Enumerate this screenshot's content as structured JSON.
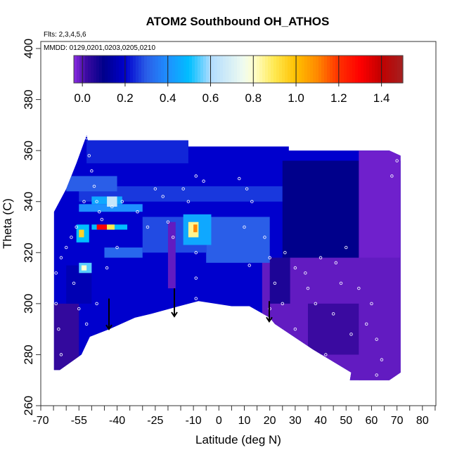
{
  "chart_data": {
    "type": "heatmap",
    "title": "ATOM2 Southbound OH_ATHOS",
    "subtitle_flights": "Flts: 2,3,4,5,6",
    "subtitle_dates": "MMDD: 0129,0201,0203,0205,0210",
    "xlabel": "Latitude (deg N)",
    "ylabel": "Theta (C)",
    "xlim": [
      -70,
      85.3
    ],
    "ylim": [
      260,
      400
    ],
    "x_ticks": [
      -70,
      -65,
      -60,
      -55,
      -50,
      -45,
      -40,
      -35,
      -30,
      -25,
      -20,
      -15,
      -10,
      -5,
      0,
      5,
      10,
      15,
      20,
      25,
      30,
      35,
      40,
      45,
      50,
      55,
      60,
      65,
      70,
      75,
      80,
      85
    ],
    "x_tick_labels": [
      "-70",
      "-55",
      "-40",
      "-25",
      "-10",
      "0",
      "10",
      "20",
      "30",
      "40",
      "50",
      "60",
      "70",
      "80"
    ],
    "x_tick_label_values": [
      -70,
      -55,
      -40,
      -25,
      -10,
      0,
      10,
      20,
      30,
      40,
      50,
      60,
      70,
      80
    ],
    "y_tick_labels": [
      "260",
      "280",
      "300",
      "320",
      "340",
      "360",
      "380",
      "400"
    ],
    "y_tick_label_values": [
      260,
      280,
      300,
      320,
      340,
      360,
      380,
      400
    ],
    "colorbar": {
      "range": [
        -0.04,
        1.5
      ],
      "tick_labels": [
        "0.0",
        "0.2",
        "0.4",
        "0.6",
        "0.8",
        "1.0",
        "1.2",
        "1.4"
      ],
      "tick_values": [
        0,
        0.2,
        0.4,
        0.6,
        0.8,
        1.0,
        1.2,
        1.4
      ],
      "stops": [
        [
          -0.04,
          "#8a2be2"
        ],
        [
          0.02,
          "#3a0aa0"
        ],
        [
          0.1,
          "#00008b"
        ],
        [
          0.2,
          "#0000cd"
        ],
        [
          0.3,
          "#2a5ee8"
        ],
        [
          0.4,
          "#1e90ff"
        ],
        [
          0.5,
          "#00bfff"
        ],
        [
          0.6,
          "#b0dcff"
        ],
        [
          0.75,
          "#eefaf0"
        ],
        [
          0.8,
          "#ffffd0"
        ],
        [
          0.9,
          "#ffe850"
        ],
        [
          1.0,
          "#ffc000"
        ],
        [
          1.1,
          "#ff8800"
        ],
        [
          1.2,
          "#ff3000"
        ],
        [
          1.3,
          "#ff0000"
        ],
        [
          1.4,
          "#c00000"
        ],
        [
          1.5,
          "#a52020"
        ]
      ]
    },
    "domain_outline": [
      [
        -64.8,
        336
      ],
      [
        -60,
        345
      ],
      [
        -56,
        355
      ],
      [
        -52,
        366
      ],
      [
        -51.5,
        364
      ],
      [
        -12,
        364
      ],
      [
        -12,
        361.6
      ],
      [
        27.5,
        361.6
      ],
      [
        27.5,
        360
      ],
      [
        67,
        360
      ],
      [
        71.4,
        358
      ],
      [
        71.4,
        273
      ],
      [
        67,
        270
      ],
      [
        51.5,
        270
      ],
      [
        52,
        273
      ],
      [
        37,
        282
      ],
      [
        22,
        292
      ],
      [
        20,
        294.5
      ],
      [
        12,
        299
      ],
      [
        5,
        299
      ],
      [
        -8,
        301
      ],
      [
        -15.6,
        299
      ],
      [
        -26.6,
        296
      ],
      [
        -33,
        294.5
      ],
      [
        -43,
        290
      ],
      [
        -50.7,
        287
      ],
      [
        -54,
        280
      ],
      [
        -62.5,
        274
      ],
      [
        -64.5,
        274
      ],
      [
        -64.8,
        274
      ]
    ],
    "cells": [
      {
        "lat": [
          -70,
          75
        ],
        "theta": [
          265,
          370
        ],
        "value": 0.2
      },
      {
        "lat": [
          -52,
          -12
        ],
        "theta": [
          355,
          366
        ],
        "value": 0.24
      },
      {
        "lat": [
          -55,
          25
        ],
        "theta": [
          340,
          346
        ],
        "value": 0.26
      },
      {
        "lat": [
          -65,
          -55
        ],
        "theta": [
          270,
          300
        ],
        "value": 0.03
      },
      {
        "lat": [
          -60,
          -50
        ],
        "theta": [
          300,
          315
        ],
        "value": 0.16
      },
      {
        "lat": [
          25,
          75
        ],
        "theta": [
          318,
          356
        ],
        "value": 0.1
      },
      {
        "lat": [
          55,
          75
        ],
        "theta": [
          265,
          360
        ],
        "value": -0.02
      },
      {
        "lat": [
          17,
          75
        ],
        "theta": [
          265,
          318
        ],
        "value": -0.01
      },
      {
        "lat": [
          20,
          28
        ],
        "theta": [
          300,
          318
        ],
        "value": 0.06
      },
      {
        "lat": [
          35,
          55
        ],
        "theta": [
          280,
          300
        ],
        "value": 0.02
      },
      {
        "lat": [
          -5,
          20
        ],
        "theta": [
          316,
          334
        ],
        "value": 0.3
      },
      {
        "lat": [
          -30,
          -5
        ],
        "theta": [
          320,
          334
        ],
        "value": 0.28
      },
      {
        "lat": [
          -55,
          -30
        ],
        "theta": [
          336,
          339
        ],
        "value": 0.4
      },
      {
        "lat": [
          -50,
          -38
        ],
        "theta": [
          339,
          342
        ],
        "value": 0.45
      },
      {
        "lat": [
          -44,
          -40
        ],
        "theta": [
          338,
          342
        ],
        "value": 0.65
      },
      {
        "lat": [
          -56,
          -51
        ],
        "theta": [
          324,
          331
        ],
        "value": 0.5
      },
      {
        "lat": [
          -55,
          -53
        ],
        "theta": [
          326,
          329
        ],
        "value": 0.95
      },
      {
        "lat": [
          -50,
          -36
        ],
        "theta": [
          329,
          331
        ],
        "value": 0.5
      },
      {
        "lat": [
          -48,
          -44
        ],
        "theta": [
          329,
          331
        ],
        "value": 1.3
      },
      {
        "lat": [
          -44,
          -41
        ],
        "theta": [
          329,
          331
        ],
        "value": 0.9
      },
      {
        "lat": [
          -14,
          -3
        ],
        "theta": [
          323,
          335
        ],
        "value": 0.45
      },
      {
        "lat": [
          -12,
          -8
        ],
        "theta": [
          326,
          332
        ],
        "value": 0.85
      },
      {
        "lat": [
          -10,
          -8.5
        ],
        "theta": [
          328,
          331
        ],
        "value": 1.1
      },
      {
        "lat": [
          -55,
          -50
        ],
        "theta": [
          312,
          316
        ],
        "value": 0.55
      },
      {
        "lat": [
          -54,
          -52
        ],
        "theta": [
          313,
          315
        ],
        "value": 0.8
      },
      {
        "lat": [
          -20,
          -17
        ],
        "theta": [
          306,
          332
        ],
        "value": -0.01
      },
      {
        "lat": [
          -45,
          -30
        ],
        "theta": [
          318,
          322
        ],
        "value": 0.32
      },
      {
        "lat": [
          -60,
          -40
        ],
        "theta": [
          344,
          350
        ],
        "value": 0.3
      }
    ],
    "observations": [
      [
        -52,
        365
      ],
      [
        -51,
        358
      ],
      [
        -50,
        352
      ],
      [
        -49,
        346
      ],
      [
        -48,
        340
      ],
      [
        -47,
        336
      ],
      [
        -46,
        333
      ],
      [
        -53,
        340
      ],
      [
        -56,
        330
      ],
      [
        -58,
        326
      ],
      [
        -60,
        322
      ],
      [
        -62,
        318
      ],
      [
        -64,
        312
      ],
      [
        -64,
        300
      ],
      [
        -63,
        290
      ],
      [
        -62,
        280
      ],
      [
        -57,
        308
      ],
      [
        -55,
        298
      ],
      [
        -52,
        292
      ],
      [
        -48,
        300
      ],
      [
        -44,
        314
      ],
      [
        -40,
        322
      ],
      [
        -42,
        338
      ],
      [
        -38,
        340
      ],
      [
        -32,
        336
      ],
      [
        -28,
        330
      ],
      [
        -25,
        345
      ],
      [
        -22,
        342
      ],
      [
        -20,
        332
      ],
      [
        -18,
        326
      ],
      [
        -14,
        345
      ],
      [
        -12,
        340
      ],
      [
        -9,
        350
      ],
      [
        -6,
        348
      ],
      [
        -9,
        320
      ],
      [
        -9,
        310
      ],
      [
        -9,
        302
      ],
      [
        8,
        349
      ],
      [
        11,
        345
      ],
      [
        13,
        340
      ],
      [
        10,
        330
      ],
      [
        12,
        315
      ],
      [
        18,
        326
      ],
      [
        20,
        318
      ],
      [
        22,
        308
      ],
      [
        20,
        298
      ],
      [
        26,
        320
      ],
      [
        30,
        314
      ],
      [
        34,
        312
      ],
      [
        40,
        318
      ],
      [
        46,
        316
      ],
      [
        50,
        322
      ],
      [
        55,
        306
      ],
      [
        60,
        300
      ],
      [
        38,
        300
      ],
      [
        45,
        296
      ],
      [
        52,
        288
      ],
      [
        62,
        286
      ],
      [
        64,
        278
      ],
      [
        62,
        272
      ],
      [
        68,
        350
      ],
      [
        70,
        356
      ],
      [
        42,
        280
      ],
      [
        30,
        290
      ],
      [
        25,
        300
      ],
      [
        35,
        306
      ],
      [
        58,
        292
      ],
      [
        48,
        308
      ]
    ],
    "arrows": [
      [
        -43.2,
        302,
        290
      ],
      [
        -17.5,
        306,
        295
      ],
      [
        19.8,
        301,
        293
      ]
    ]
  }
}
